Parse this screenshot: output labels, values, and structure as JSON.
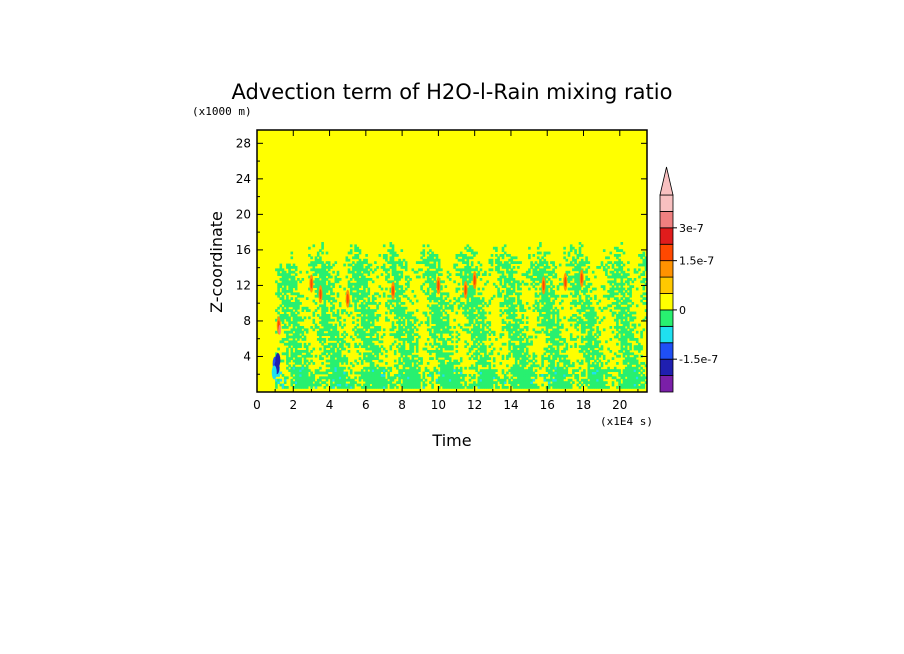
{
  "chart_data": {
    "type": "heatmap",
    "title": "Advection term of H2O-l-Rain mixing ratio",
    "xlabel": "Time",
    "ylabel": "Z-coordinate",
    "x_unit": "(x1E4 s)",
    "y_unit": "(x1000 m)",
    "xlim": [
      0,
      21.5
    ],
    "ylim": [
      0,
      29.5
    ],
    "xticks": [
      "0",
      "2",
      "4",
      "6",
      "8",
      "10",
      "12",
      "14",
      "16",
      "18",
      "20"
    ],
    "yticks": [
      "4",
      "8",
      "12",
      "16",
      "20",
      "24",
      "28"
    ],
    "colorbar": {
      "levels": [
        {
          "color": "#7a1fa8"
        },
        {
          "color": "#1f1fb0"
        },
        {
          "color": "#1f4ff5"
        },
        {
          "color": "#1fe0f0"
        },
        {
          "color": "#28f070"
        },
        {
          "color": "#ffff00"
        },
        {
          "color": "#ffc800"
        },
        {
          "color": "#ff9200"
        },
        {
          "color": "#ff4800"
        },
        {
          "color": "#e01c1c"
        },
        {
          "color": "#f08080"
        },
        {
          "color": "#f8c0c0"
        }
      ],
      "labels": [
        "3e-7",
        "1.5e-7",
        "0",
        "-1.5e-7"
      ],
      "extend": "max"
    },
    "field_summary": {
      "background_value": 0,
      "active_layer_top_km": 16,
      "active_period_start_1e4s": 1.0
    }
  }
}
